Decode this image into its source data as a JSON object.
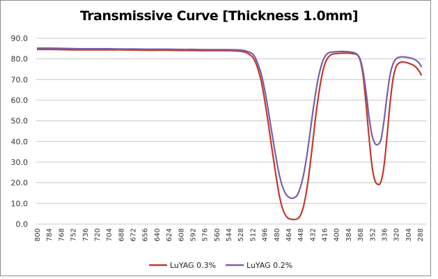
{
  "chart_data": {
    "type": "line",
    "title": "Transmissive Curve [Thickness 1.0mm]",
    "xlabel": "",
    "ylabel": "",
    "ylim": [
      0,
      90
    ],
    "yticks": [
      "0.0",
      "10.0",
      "20.0",
      "30.0",
      "40.0",
      "50.0",
      "60.0",
      "70.0",
      "80.0",
      "90.0"
    ],
    "xlim": [
      800,
      288
    ],
    "xticks": [
      "800",
      "784",
      "768",
      "752",
      "736",
      "720",
      "704",
      "688",
      "672",
      "656",
      "640",
      "624",
      "608",
      "592",
      "576",
      "560",
      "544",
      "528",
      "512",
      "496",
      "480",
      "464",
      "448",
      "432",
      "416",
      "400",
      "384",
      "368",
      "352",
      "336",
      "320",
      "304",
      "288"
    ],
    "grid": true,
    "legend": "bottom",
    "x": [
      800,
      784,
      768,
      752,
      736,
      720,
      704,
      688,
      672,
      656,
      640,
      624,
      608,
      592,
      576,
      560,
      544,
      536,
      528,
      520,
      512,
      508,
      504,
      500,
      496,
      492,
      488,
      484,
      480,
      476,
      472,
      468,
      464,
      460,
      456,
      452,
      448,
      444,
      440,
      436,
      432,
      428,
      424,
      420,
      416,
      412,
      408,
      404,
      400,
      396,
      392,
      388,
      384,
      380,
      376,
      372,
      368,
      364,
      360,
      356,
      352,
      348,
      344,
      340,
      336,
      332,
      328,
      324,
      320,
      316,
      312,
      308,
      304,
      300,
      296,
      292,
      288,
      286
    ],
    "series": [
      {
        "name": "LuYAG 0.3%",
        "color": "#c0392b",
        "values": [
          84.6,
          84.6,
          84.5,
          84.4,
          84.4,
          84.4,
          84.4,
          84.4,
          84.3,
          84.2,
          84.2,
          84.2,
          84.1,
          84.1,
          84.0,
          84.0,
          84.0,
          83.9,
          83.7,
          83.0,
          81.0,
          78.5,
          74.5,
          69.0,
          61.0,
          52.0,
          42.0,
          32.0,
          22.5,
          14.0,
          8.0,
          4.5,
          2.8,
          2.3,
          2.2,
          2.5,
          4.0,
          8.0,
          15.0,
          25.0,
          37.0,
          50.0,
          61.0,
          70.0,
          76.5,
          80.0,
          81.7,
          82.4,
          82.6,
          82.7,
          82.8,
          82.8,
          82.8,
          82.7,
          82.5,
          82.0,
          79.5,
          72.0,
          58.0,
          42.0,
          28.0,
          21.0,
          19.2,
          20.5,
          28.0,
          42.0,
          58.0,
          70.0,
          76.0,
          78.0,
          78.5,
          78.4,
          78.0,
          77.5,
          76.8,
          75.5,
          73.5,
          72.0
        ]
      },
      {
        "name": "LuYAG 0.2%",
        "color": "#7b5ea7",
        "values": [
          85.2,
          85.2,
          85.1,
          85.0,
          84.9,
          84.9,
          84.9,
          84.8,
          84.8,
          84.7,
          84.7,
          84.7,
          84.6,
          84.6,
          84.5,
          84.5,
          84.5,
          84.4,
          84.3,
          83.8,
          82.5,
          80.5,
          77.0,
          72.5,
          66.0,
          58.0,
          49.0,
          40.0,
          31.5,
          24.0,
          18.5,
          15.0,
          13.2,
          12.5,
          12.7,
          14.0,
          17.5,
          23.0,
          31.0,
          41.0,
          52.0,
          62.0,
          70.5,
          76.5,
          80.5,
          82.5,
          83.2,
          83.4,
          83.5,
          83.6,
          83.6,
          83.6,
          83.5,
          83.3,
          83.0,
          82.2,
          80.0,
          74.0,
          64.0,
          52.0,
          43.0,
          39.0,
          38.6,
          41.0,
          50.0,
          62.0,
          72.0,
          77.5,
          80.0,
          80.8,
          81.0,
          80.9,
          80.7,
          80.4,
          79.9,
          79.0,
          77.5,
          76.0
        ]
      }
    ]
  }
}
